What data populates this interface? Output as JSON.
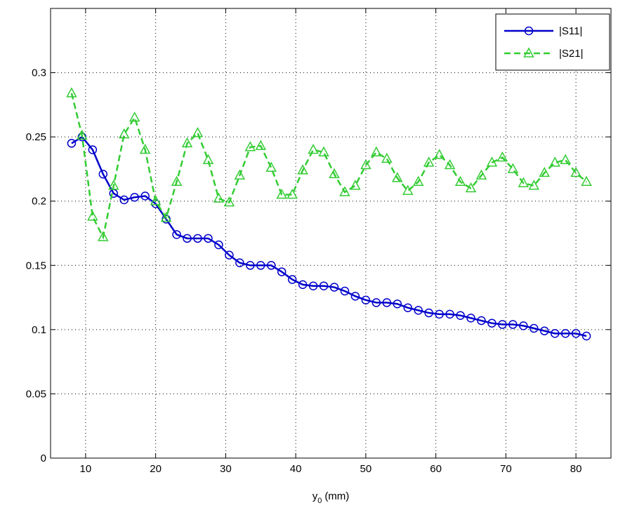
{
  "chart_data": {
    "type": "line",
    "xlabel": "y",
    "xlabel_sub": "0",
    "xlabel_unit": "(mm)",
    "x": [
      8,
      9.5,
      11,
      12.5,
      14,
      15.5,
      17,
      18.5,
      20,
      21.5,
      23,
      24.5,
      26,
      27.5,
      29,
      30.5,
      32,
      33.5,
      35,
      36.5,
      38,
      39.5,
      41,
      42.5,
      44,
      45.5,
      47,
      48.5,
      50,
      51.5,
      53,
      54.5,
      56,
      57.5,
      59,
      60.5,
      62,
      63.5,
      65,
      66.5,
      68,
      69.5,
      71,
      72.5,
      74,
      75.5,
      77,
      78.5,
      80,
      81.5
    ],
    "series": [
      {
        "name": "|S11|",
        "color": "#0000cc",
        "marker": "circle",
        "dashed": false,
        "values": [
          0.245,
          0.25,
          0.24,
          0.221,
          0.206,
          0.201,
          0.203,
          0.204,
          0.198,
          0.186,
          0.174,
          0.171,
          0.171,
          0.171,
          0.166,
          0.158,
          0.152,
          0.15,
          0.15,
          0.15,
          0.145,
          0.139,
          0.135,
          0.134,
          0.134,
          0.133,
          0.13,
          0.126,
          0.123,
          0.121,
          0.121,
          0.12,
          0.117,
          0.115,
          0.113,
          0.112,
          0.112,
          0.111,
          0.109,
          0.107,
          0.105,
          0.104,
          0.104,
          0.103,
          0.101,
          0.099,
          0.097,
          0.097,
          0.097,
          0.095
        ]
      },
      {
        "name": "|S21|",
        "color": "#33cc33",
        "marker": "triangle",
        "dashed": true,
        "values": [
          0.284,
          0.251,
          0.188,
          0.172,
          0.212,
          0.252,
          0.265,
          0.24,
          0.2,
          0.187,
          0.215,
          0.245,
          0.253,
          0.232,
          0.202,
          0.199,
          0.22,
          0.242,
          0.243,
          0.226,
          0.205,
          0.205,
          0.224,
          0.24,
          0.238,
          0.221,
          0.207,
          0.212,
          0.228,
          0.238,
          0.233,
          0.218,
          0.208,
          0.215,
          0.23,
          0.236,
          0.228,
          0.215,
          0.21,
          0.22,
          0.23,
          0.234,
          0.225,
          0.214,
          0.212,
          0.222,
          0.23,
          0.232,
          0.222,
          0.215
        ]
      }
    ],
    "xlim": [
      5,
      85
    ],
    "xticks": [
      10,
      20,
      30,
      40,
      50,
      60,
      70,
      80
    ],
    "ylim": [
      0,
      0.35
    ],
    "yticks": [
      0,
      0.05,
      0.1,
      0.15,
      0.2,
      0.25,
      0.3
    ],
    "grid": true,
    "legend": "northeast"
  }
}
